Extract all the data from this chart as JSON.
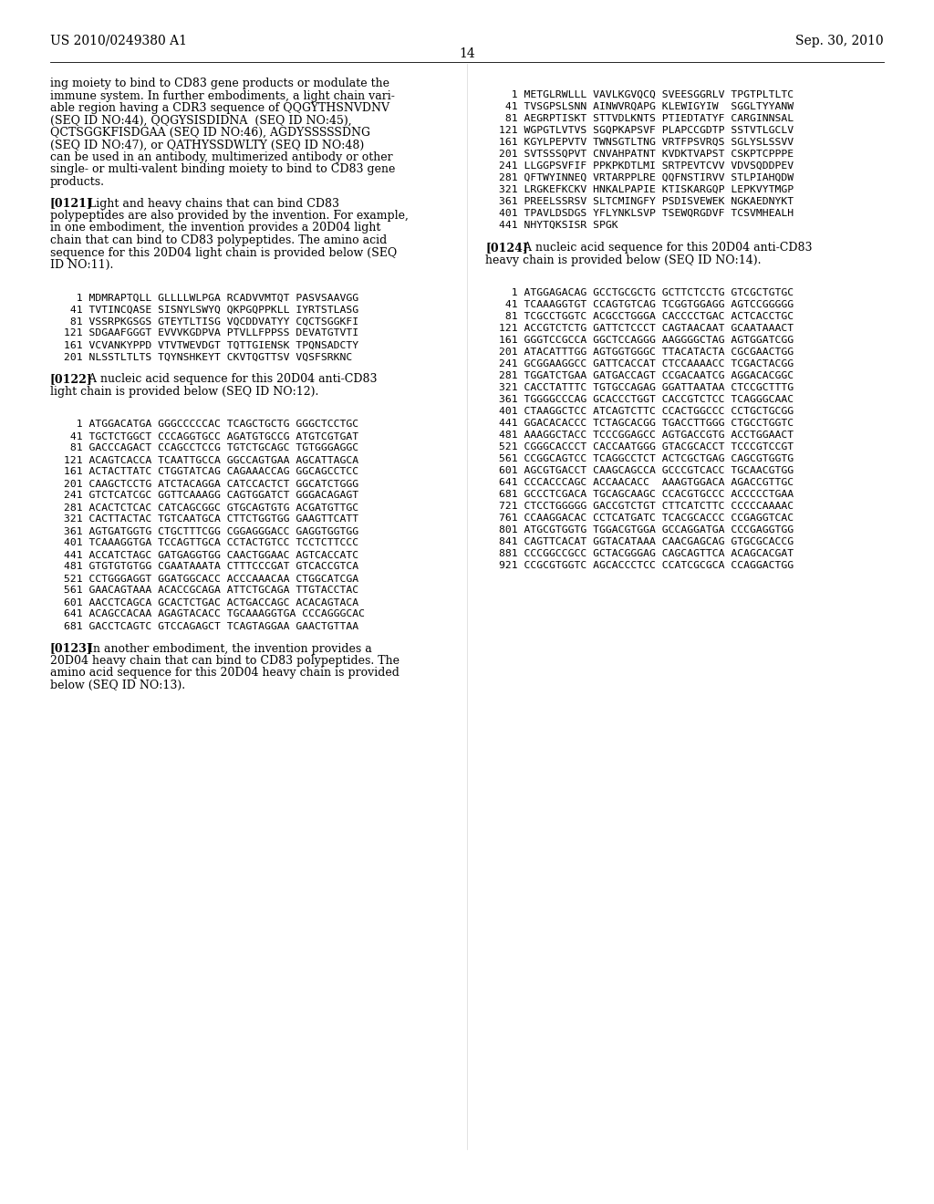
{
  "background_color": "#ffffff",
  "header_left": "US 2010/0249380 A1",
  "header_right": "Sep. 30, 2010",
  "page_number": "14",
  "left_col": [
    {
      "type": "body_lines",
      "lines": [
        "ing moiety to bind to CD83 gene products or modulate the",
        "immune system. In further embodiments, a light chain vari-",
        "able region having a CDR3 sequence of QQGYTHSNVDNV",
        "(SEQ ID NO:44), QQGYSISDIDNA  (SEQ ID NO:45),",
        "QCTSGGKFISDGAA (SEQ ID NO:46), AGDYSSSSSDNG",
        "(SEQ ID NO:47), or QATHYSSDWLTY (SEQ ID NO:48)",
        "can be used in an antibody, multimerized antibody or other",
        "single- or multi-valent binding moiety to bind to CD83 gene",
        "products."
      ]
    },
    {
      "type": "para",
      "bold_prefix": "[0121]",
      "lines": [
        "  Light and heavy chains that can bind CD83",
        "polypeptides are also provided by the invention. For example,",
        "in one embodiment, the invention provides a 20D04 light",
        "chain that can bind to CD83 polypeptides. The amino acid",
        "sequence for this 20D04 light chain is provided below (SEQ",
        "ID NO:11)."
      ]
    },
    {
      "type": "seq_block",
      "lines": [
        "  1 MDMRAPTQLL GLLLLWLPGA RCADVVMTQT PASVSAAVGG",
        " 41 TVTINCQASE SISNYLSWYQ QKPGQPPKLL IYRTSTLASG",
        " 81 VSSRPKGSGS GTEYTLTISG VQCDDVATYY CQCTSGGKFI",
        "121 SDGAAFGGGT EVVVKGDPVA PTVLLFPPSS DEVATGTVTI",
        "161 VCVANKYPPD VTVTWEVDGT TQTTGIENSK TPQNSADCTY",
        "201 NLSSTLTLTS TQYNSHKEYT CKVTQGTTSV VQSFSRKNC"
      ]
    },
    {
      "type": "para",
      "bold_prefix": "[0122]",
      "lines": [
        "  A nucleic acid sequence for this 20D04 anti-CD83",
        "light chain is provided below (SEQ ID NO:12)."
      ]
    },
    {
      "type": "seq_block",
      "lines": [
        "  1 ATGGACATGA GGGCCCCCAC TCAGCTGCTG GGGCTCCTGC",
        " 41 TGCTCTGGCT CCCAGGTGCC AGATGTGCCG ATGTCGTGAT",
        " 81 GACCCAGACT CCAGCCTCCG TGTCTGCAGC TGTGGGAGGC",
        "121 ACAGTCACCA TCAATTGCCA GGCCAGTGAA AGCATTAGCA",
        "161 ACTACTTATC CTGGTATCAG CAGAAACCAG GGCAGCCTCC",
        "201 CAAGCTCCTG ATCTACAGGA CATCCACTCT GGCATCTGGG",
        "241 GTCTCATCGC GGTTCAAAGG CAGTGGATCT GGGACAGAGT",
        "281 ACACTCTCAC CATCAGCGGC GTGCAGTGTG ACGATGTTGC",
        "321 CACTTACTAC TGTCAATGCA CTTCTGGTGG GAAGTTCATT",
        "361 AGTGATGGTG CTGCTTTCGG CGGAGGGACC GAGGTGGTGG",
        "401 TCAAAGGTGA TCCAGTTGCA CCTACTGTCC TCCTCTTCCC",
        "441 ACCATCTAGC GATGAGGTGG CAACTGGAAC AGTCACCATC",
        "481 GTGTGTGTGG CGAATAAATA CTTTCCCGAT GTCACCGTCA",
        "521 CCTGGGAGGT GGATGGCACC ACCCAAACAA CTGGCATCGA",
        "561 GAACAGTAAA ACACCGCAGA ATTCTGCAGA TTGTACCTAC",
        "601 AACCTCAGCA GCACTCTGAC ACTGACCAGC ACACAGTACA",
        "641 ACAGCCACAA AGAGTACACC TGCAAAGGTGA CCCAGGGCAC",
        "681 GACCTCAGTC GTCCAGAGCT TCAGTAGGAA GAACTGTTAA"
      ]
    },
    {
      "type": "para",
      "bold_prefix": "[0123]",
      "lines": [
        "  In another embodiment, the invention provides a",
        "20D04 heavy chain that can bind to CD83 polypeptides. The",
        "amino acid sequence for this 20D04 heavy chain is provided",
        "below (SEQ ID NO:13)."
      ]
    }
  ],
  "right_col": [
    {
      "type": "seq_block",
      "lines": [
        "  1 METGLRWLLL VAVLKGVQCQ SVEESGGRLV TPGTPLTLTC",
        " 41 TVSGPSLSNN AINWVRQAPG KLEWIGYIW  SGGLTYYANW",
        " 81 AEGRPTISKT STTVDLKNTS PTIEDTATYF CARGINNSAL",
        "121 WGPGTLVTVS SGQPKAPSVF PLAPCCGDTP SSTVTLGCLV",
        "161 KGYLPEPVTV TWNSGTLTNG VRTFPSVRQS SGLYSLSSVV",
        "201 SVTSSSQPVT CNVAHPATNT KVDKTVAPST CSKPTCPPPE",
        "241 LLGGPSVFIF PPKPKDTLMI SRTPEVTCVV VDVSQDDPEV",
        "281 QFTWYINNEQ VRTARPPLRE QQFNSTIRVV STLPIAHQDW",
        "321 LRGKEFKCKV HNKALPAPIE KTISKARGQP LEPKVYTMGP",
        "361 PREELSSRSV SLTCMINGFY PSDISVEWEK NGKAEDNYKT",
        "401 TPAVLDSDGS YFLYNKLSVP TSEWQRGDVF TCSVMHEALH",
        "441 NHYTQKSISR SPGK"
      ]
    },
    {
      "type": "para",
      "bold_prefix": "[0124]",
      "lines": [
        "  A nucleic acid sequence for this 20D04 anti-CD83",
        "heavy chain is provided below (SEQ ID NO:14)."
      ]
    },
    {
      "type": "seq_block",
      "lines": [
        "  1 ATGGAGACAG GCCTGCGCTG GCTTCTCCTG GTCGCTGTGC",
        " 41 TCAAAGGTGT CCAGTGTCAG TCGGTGGAGG AGTCCGGGGG",
        " 81 TCGCCTGGTC ACGCCTGGGA CACCCCTGAC ACTCACCTGC",
        "121 ACCGTCTCTG GATTCTCCCT CAGTAACAAT GCAATAAACT",
        "161 GGGTCCGCCA GGCTCCAGGG AAGGGGCTAG AGTGGATCGG",
        "201 ATACATTTGG AGTGGTGGGC TTACATACTA CGCGAACTGG",
        "241 GCGGAAGGCC GATTCACCAT CTCCAAAACC TCGACTACGG",
        "281 TGGATCTGAA GATGACCAGT CCGACAATCG AGGACACGGC",
        "321 CACCTATTTC TGTGCCAGAG GGATTAATAA CTCCGCTTTG",
        "361 TGGGGCCCAG GCACCCTGGT CACCGTCTCC TCAGGGCAAC",
        "401 CTAAGGCTCC ATCAGTCTTC CCACTGGCCC CCTGCTGCGG",
        "441 GGACACACCC TCTAGCACGG TGACCTTGGG CTGCCTGGTC",
        "481 AAAGGCTACC TCCCGGAGCC AGTGACCGTG ACCTGGAACT",
        "521 CGGGCACCCT CACCAATGGG GTACGCACCT TCCCGTCCGT",
        "561 CCGGCAGTCC TCAGGCCTCT ACTCGCTGAG CAGCGTGGTG",
        "601 AGCGTGACCT CAAGCAGCCA GCCCGTCACC TGCAACGTGG",
        "641 CCCACCCAGC ACCAACACC  AAAGTGGACA AGACCGTTGC",
        "681 GCCCTCGACA TGCAGCAAGC CCACGTGCCC ACCCCCTGAA",
        "721 CTCCTGGGGG GACCGTCTGT CTTCATCTTC CCCCCAAAAC",
        "761 CCAAGGACAC CCTCATGATC TCACGCACCC CCGAGGTCAC",
        "801 ATGCGTGGTG TGGACGTGGA GCCAGGATGA CCCGAGGTGG",
        "841 CAGTTCACAT GGTACATAAA CAACGAGCAG GTGCGCACCG",
        "881 CCCGGCCGCC GCTACGGGAG CAGCAGTTCA ACAGCACGAT",
        "921 CCGCGTGGTC AGCACCCTCC CCATCGCGCA CCAGGACTGG"
      ]
    }
  ]
}
